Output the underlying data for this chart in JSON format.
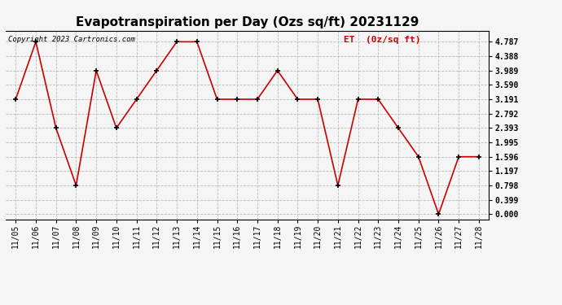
{
  "title": "Evapotranspiration per Day (Ozs sq/ft) 20231129",
  "copyright_text": "Copyright 2023 Cartronics.com",
  "legend_label": "ET  (0z/sq ft)",
  "dates": [
    "11/05",
    "11/06",
    "11/07",
    "11/08",
    "11/09",
    "11/10",
    "11/11",
    "11/12",
    "11/13",
    "11/14",
    "11/15",
    "11/16",
    "11/17",
    "11/18",
    "11/19",
    "11/20",
    "11/21",
    "11/22",
    "11/23",
    "11/24",
    "11/25",
    "11/26",
    "11/27",
    "11/28"
  ],
  "values": [
    3.191,
    4.787,
    2.393,
    0.798,
    3.989,
    2.393,
    3.191,
    3.989,
    4.787,
    4.787,
    3.191,
    3.191,
    3.191,
    3.989,
    3.191,
    3.191,
    0.798,
    3.191,
    3.191,
    2.393,
    1.596,
    0.0,
    1.596,
    1.596
  ],
  "line_color": "#cc0000",
  "marker_color": "#000000",
  "background_color": "#f5f5f5",
  "grid_color": "#bbbbbb",
  "title_fontsize": 11,
  "tick_label_fontsize": 7,
  "yticks": [
    0.0,
    0.399,
    0.798,
    1.197,
    1.596,
    1.995,
    2.393,
    2.792,
    3.191,
    3.59,
    3.989,
    4.388,
    4.787
  ],
  "ylim": [
    -0.15,
    5.1
  ]
}
